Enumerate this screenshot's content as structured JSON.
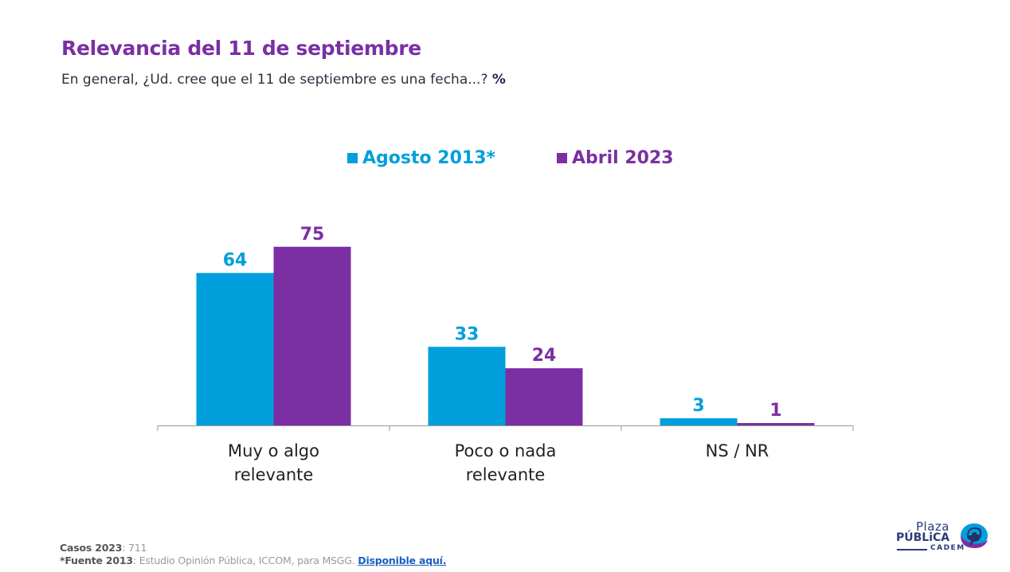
{
  "header": {
    "title": "Relevancia del 11 de septiembre",
    "subtitle": "En general, ¿Ud. cree que el 11 de septiembre es una fecha...?",
    "subtitle_unit": "%"
  },
  "colors": {
    "series_2013": "#009fdc",
    "series_2023": "#7b2fa3",
    "title": "#7b2fa3",
    "axis": "#999999",
    "category_text": "#222222"
  },
  "chart_data": {
    "type": "bar",
    "title": "Relevancia del 11 de septiembre",
    "subtitle": "En general, ¿Ud. cree que el 11 de septiembre es una fecha...? %",
    "categories": [
      [
        "Muy o algo",
        "relevante"
      ],
      [
        "Poco o nada",
        "relevante"
      ],
      [
        "NS / NR"
      ]
    ],
    "series": [
      {
        "name": "Agosto 2013*",
        "color": "#009fdc",
        "values": [
          64,
          33,
          3
        ]
      },
      {
        "name": "Abril 2023",
        "color": "#7b2fa3",
        "values": [
          75,
          24,
          1
        ]
      }
    ],
    "xlabel": "",
    "ylabel": "",
    "ylim": [
      0,
      80
    ],
    "grid": false,
    "legend_position": "top-center",
    "data_labels": true
  },
  "footer": {
    "cases_label": "Casos 2023",
    "cases_value": ": 711",
    "source_label": "*Fuente 2013",
    "source_text": ": Estudio Opinión Pública, ICCOM, para MSGG. ",
    "source_link": "Disponible aquí."
  },
  "logo": {
    "line1": "Plaza",
    "line2": "PÚBLiCA",
    "line3": "CADEM"
  }
}
